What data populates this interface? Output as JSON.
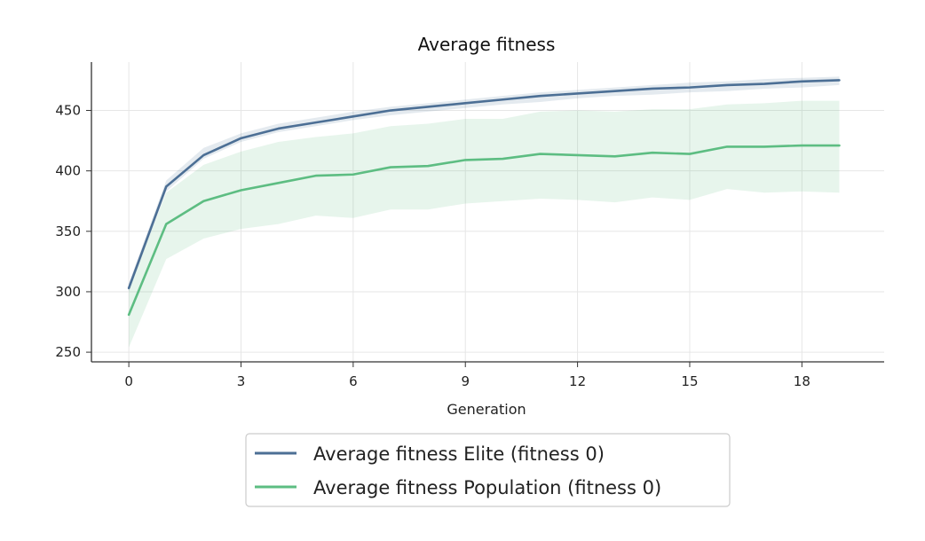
{
  "chart_data": {
    "type": "line",
    "title": "Average fitness",
    "xlabel": "Generation",
    "ylabel": "",
    "xlim": [
      -1,
      20.2
    ],
    "ylim": [
      242,
      490
    ],
    "xticks": [
      0,
      3,
      6,
      9,
      12,
      15,
      18
    ],
    "yticks": [
      250,
      300,
      350,
      400,
      450
    ],
    "grid": true,
    "legend_position": "bottom-center",
    "x": [
      0,
      1,
      2,
      3,
      4,
      5,
      6,
      7,
      8,
      9,
      10,
      11,
      12,
      13,
      14,
      15,
      16,
      17,
      18,
      19
    ],
    "series": [
      {
        "name": "Average fitness Elite (fitness 0)",
        "color": "#4c6f95",
        "values": [
          303,
          387,
          413,
          427,
          435,
          440,
          445,
          450,
          453,
          456,
          459,
          462,
          464,
          466,
          468,
          469,
          471,
          472,
          474,
          475
        ],
        "lower": [
          300,
          383,
          410,
          424,
          432,
          437,
          442,
          446,
          449,
          452,
          455,
          457,
          460,
          462,
          463,
          465,
          466,
          468,
          469,
          471
        ],
        "upper": [
          307,
          392,
          419,
          431,
          439,
          444,
          449,
          453,
          456,
          459,
          462,
          465,
          467,
          469,
          471,
          473,
          474,
          476,
          477,
          478
        ]
      },
      {
        "name": "Average fitness Population (fitness 0)",
        "color": "#5dbd82",
        "values": [
          281,
          356,
          375,
          384,
          390,
          396,
          397,
          403,
          404,
          409,
          410,
          414,
          413,
          412,
          415,
          414,
          420,
          420,
          421,
          421
        ],
        "lower": [
          254,
          327,
          344,
          352,
          356,
          363,
          361,
          368,
          368,
          373,
          375,
          377,
          376,
          374,
          378,
          376,
          385,
          382,
          383,
          382
        ],
        "upper": [
          302,
          382,
          405,
          416,
          424,
          428,
          431,
          437,
          439,
          443,
          443,
          449,
          450,
          449,
          451,
          451,
          455,
          456,
          458,
          458
        ]
      }
    ]
  }
}
